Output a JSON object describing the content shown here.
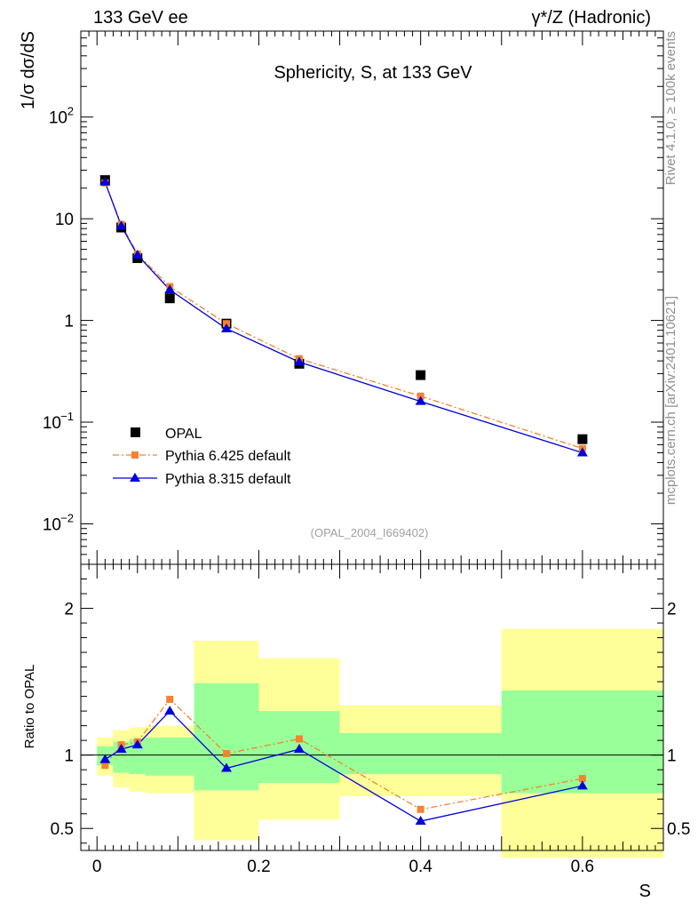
{
  "header": {
    "left": "133 GeV ee",
    "right": "γ*/Z (Hadronic)"
  },
  "side_text": {
    "version": "Rivet 4.1.0, ≥ 100k events",
    "source": "mcplots.cern.ch [arXiv:2401.10621]"
  },
  "chart_data": [
    {
      "type": "scatter",
      "title": "Sphericity, S, at 133 GeV",
      "watermark": "(OPAL_2004_I669402)",
      "xlabel": "S",
      "ylabel": "1/σ  dσ/dS",
      "yscale": "log",
      "xlim": [
        -0.02,
        0.7
      ],
      "ylim": [
        0.004,
        700
      ],
      "y_ticks": [
        {
          "value": 0.01,
          "label": "10",
          "exp": "−2"
        },
        {
          "value": 0.1,
          "label": "10",
          "exp": "−1"
        },
        {
          "value": 1,
          "label": "1",
          "exp": ""
        },
        {
          "value": 10,
          "label": "10",
          "exp": ""
        },
        {
          "value": 100,
          "label": "10",
          "exp": "2"
        }
      ],
      "legend_position": "lower-left",
      "x": [
        0.01,
        0.03,
        0.05,
        0.09,
        0.16,
        0.25,
        0.4,
        0.6
      ],
      "series": [
        {
          "name": "OPAL",
          "color": "#000000",
          "marker": "square",
          "line": "none",
          "values": [
            24.0,
            8.2,
            4.1,
            1.65,
            0.93,
            0.375,
            0.29,
            0.068
          ]
        },
        {
          "name": "Pythia 6.425 default",
          "color": "#f58231",
          "marker": "small-square",
          "line": "dash-dot",
          "values": [
            22.5,
            8.8,
            4.5,
            2.15,
            0.93,
            0.42,
            0.18,
            0.055
          ]
        },
        {
          "name": "Pythia 8.315 default",
          "color": "#0000dd",
          "marker": "triangle",
          "line": "solid",
          "values": [
            23.0,
            8.5,
            4.4,
            2.0,
            0.83,
            0.39,
            0.16,
            0.05
          ]
        }
      ]
    },
    {
      "type": "line",
      "ylabel": "Ratio to OPAL",
      "xlabel": "S",
      "xlim": [
        -0.02,
        0.7
      ],
      "ylim": [
        0.35,
        2.3
      ],
      "y_ticks": [
        {
          "value": 0.5,
          "label": "0.5"
        },
        {
          "value": 1,
          "label": "1"
        },
        {
          "value": 2,
          "label": "2"
        }
      ],
      "x_ticks": [
        {
          "value": 0,
          "label": "0"
        },
        {
          "value": 0.2,
          "label": "0.2"
        },
        {
          "value": 0.4,
          "label": "0.4"
        },
        {
          "value": 0.6,
          "label": "0.6"
        }
      ],
      "reference_line": 1,
      "bands": [
        {
          "x0": 0.0,
          "x1": 0.02,
          "yellow": [
            0.86,
            1.12
          ],
          "green": [
            0.93,
            1.06
          ]
        },
        {
          "x0": 0.02,
          "x1": 0.04,
          "yellow": [
            0.78,
            1.17
          ],
          "green": [
            0.88,
            1.09
          ]
        },
        {
          "x0": 0.04,
          "x1": 0.06,
          "yellow": [
            0.75,
            1.19
          ],
          "green": [
            0.87,
            1.11
          ]
        },
        {
          "x0": 0.06,
          "x1": 0.12,
          "yellow": [
            0.74,
            1.2
          ],
          "green": [
            0.86,
            1.12
          ]
        },
        {
          "x0": 0.12,
          "x1": 0.2,
          "yellow": [
            0.42,
            1.78
          ],
          "green": [
            0.76,
            1.49
          ]
        },
        {
          "x0": 0.2,
          "x1": 0.3,
          "yellow": [
            0.56,
            1.66
          ],
          "green": [
            0.81,
            1.3
          ]
        },
        {
          "x0": 0.3,
          "x1": 0.5,
          "yellow": [
            0.72,
            1.34
          ],
          "green": [
            0.87,
            1.15
          ]
        },
        {
          "x0": 0.5,
          "x1": 0.7,
          "yellow": [
            0.3,
            1.86
          ],
          "green": [
            0.74,
            1.44
          ]
        }
      ],
      "series": [
        {
          "name": "Pythia 6.425 default",
          "color": "#f58231",
          "values": [
            0.93,
            1.07,
            1.09,
            1.38,
            1.01,
            1.11,
            0.63,
            0.84
          ],
          "errors": [
            0.01,
            0.01,
            0.01,
            0.015,
            0.01,
            0.012,
            0.012,
            0.025
          ]
        },
        {
          "name": "Pythia 8.315 default",
          "color": "#0000dd",
          "values": [
            0.97,
            1.04,
            1.07,
            1.3,
            0.91,
            1.04,
            0.55,
            0.79
          ],
          "errors": [
            0.01,
            0.01,
            0.01,
            0.01,
            0.01,
            0.01,
            0.01,
            0.02
          ]
        }
      ]
    }
  ]
}
